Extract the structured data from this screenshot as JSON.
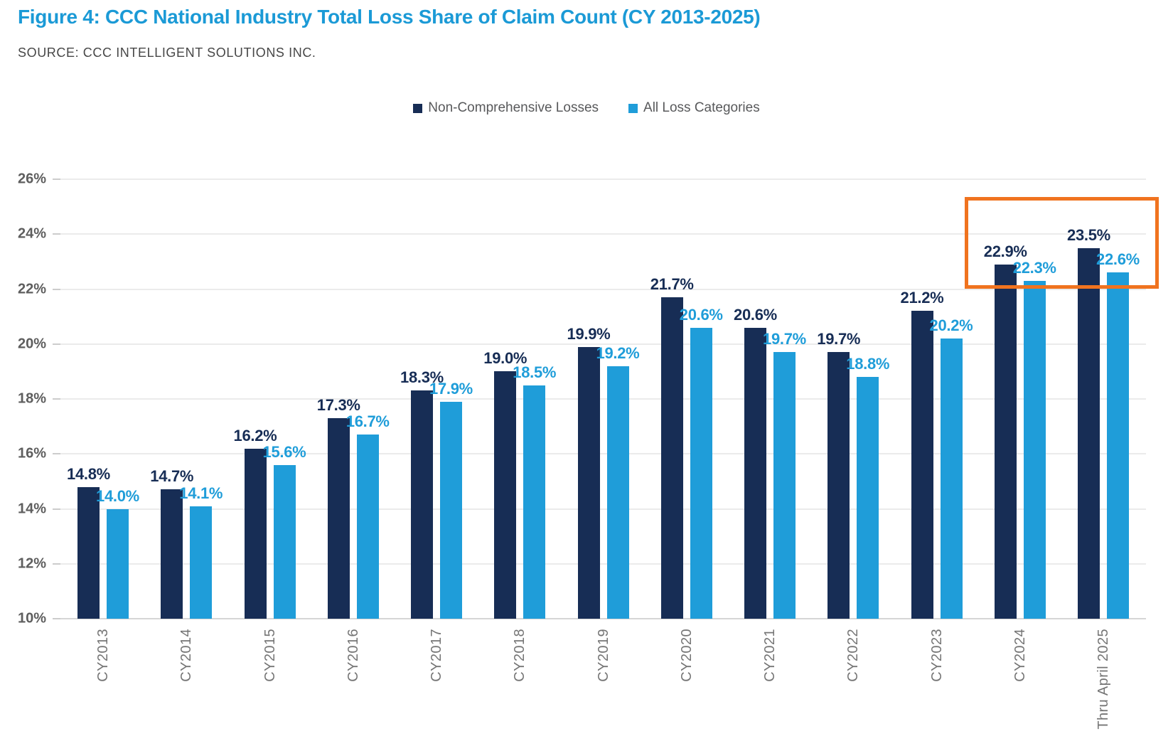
{
  "figure": {
    "title": "Figure 4: CCC National Industry Total Loss Share of Claim Count (CY 2013-2025)",
    "source": "SOURCE: CCC INTELLIGENT SOLUTIONS INC."
  },
  "colors": {
    "title_blue": "#1b9ad6",
    "navy": "#172d55",
    "light_blue": "#1f9dd9",
    "highlight_orange": "#f0731f",
    "grid_gray": "#ebebeb",
    "axis_text_gray": "#757575"
  },
  "chart_data": {
    "type": "bar",
    "title": "Figure 4: CCC National Industry Total Loss Share of Claim Count (CY 2013-2025)",
    "subtitle": "SOURCE: CCC INTELLIGENT SOLUTIONS INC.",
    "categories": [
      "CY2013",
      "CY2014",
      "CY2015",
      "CY2016",
      "CY2017",
      "CY2018",
      "CY2019",
      "CY2020",
      "CY2021",
      "CY2022",
      "CY2023",
      "CY2024",
      "Thru April 2025"
    ],
    "series": [
      {
        "name": "Non-Comprehensive Losses",
        "color": "#172d55",
        "values": [
          14.8,
          14.7,
          16.2,
          17.3,
          18.3,
          19.0,
          19.9,
          21.7,
          20.6,
          19.7,
          21.2,
          22.9,
          23.5
        ]
      },
      {
        "name": "All Loss Categories",
        "color": "#1f9dd9",
        "values": [
          14.0,
          14.1,
          15.6,
          16.7,
          17.9,
          18.5,
          19.2,
          20.6,
          19.7,
          18.8,
          20.2,
          22.3,
          22.6
        ]
      }
    ],
    "xlabel": "",
    "ylabel": "",
    "ylim": [
      10,
      26
    ],
    "ytick_step": 2,
    "ytick_suffix": "%",
    "value_label_suffix": "%",
    "value_label_decimals": 1,
    "grid": true,
    "legend_position": "top",
    "annotation": {
      "type": "highlight-box",
      "color": "#f0731f",
      "categories": [
        "CY2024",
        "Thru April 2025"
      ],
      "y_top_value": 25.35,
      "y_bottom_value": 22.0
    }
  }
}
